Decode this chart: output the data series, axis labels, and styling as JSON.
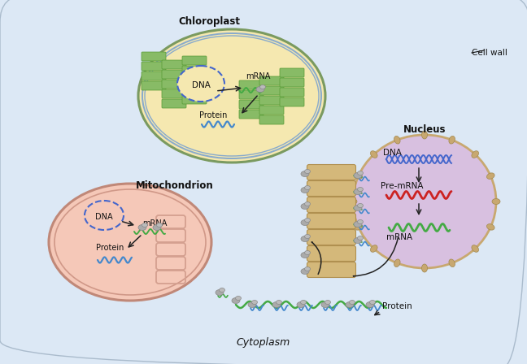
{
  "fig_width": 6.48,
  "fig_height": 4.48,
  "dpi": 100,
  "bg_outer": "#d4b896",
  "bg_cell": "#dce8f5",
  "cell_wall_color": "#c9a97a",
  "cell_wall_label": "Cell wall",
  "cytoplasm_label": "Cytoplasm",
  "chloroplast_label": "Chloroplast",
  "chloroplast_bg": "#f5e8b0",
  "chloroplast_inner_bg": "#e8f0d0",
  "mitochondrion_label": "Mitochondrion",
  "mitochondrion_bg": "#f5c8b8",
  "nucleus_label": "Nucleus",
  "nucleus_bg": "#d8c0e0",
  "nucleus_border": "#c8a870",
  "thylakoid_color": "#88bb66",
  "dna_color_blue": "#4466cc",
  "mrna_color": "#44aa44",
  "pre_mrna_color": "#cc2222",
  "protein_color": "#4488cc",
  "er_color": "#d4b87a",
  "ribosome_color": "#999999",
  "label_color": "#111111",
  "font_family": "DejaVu Sans"
}
